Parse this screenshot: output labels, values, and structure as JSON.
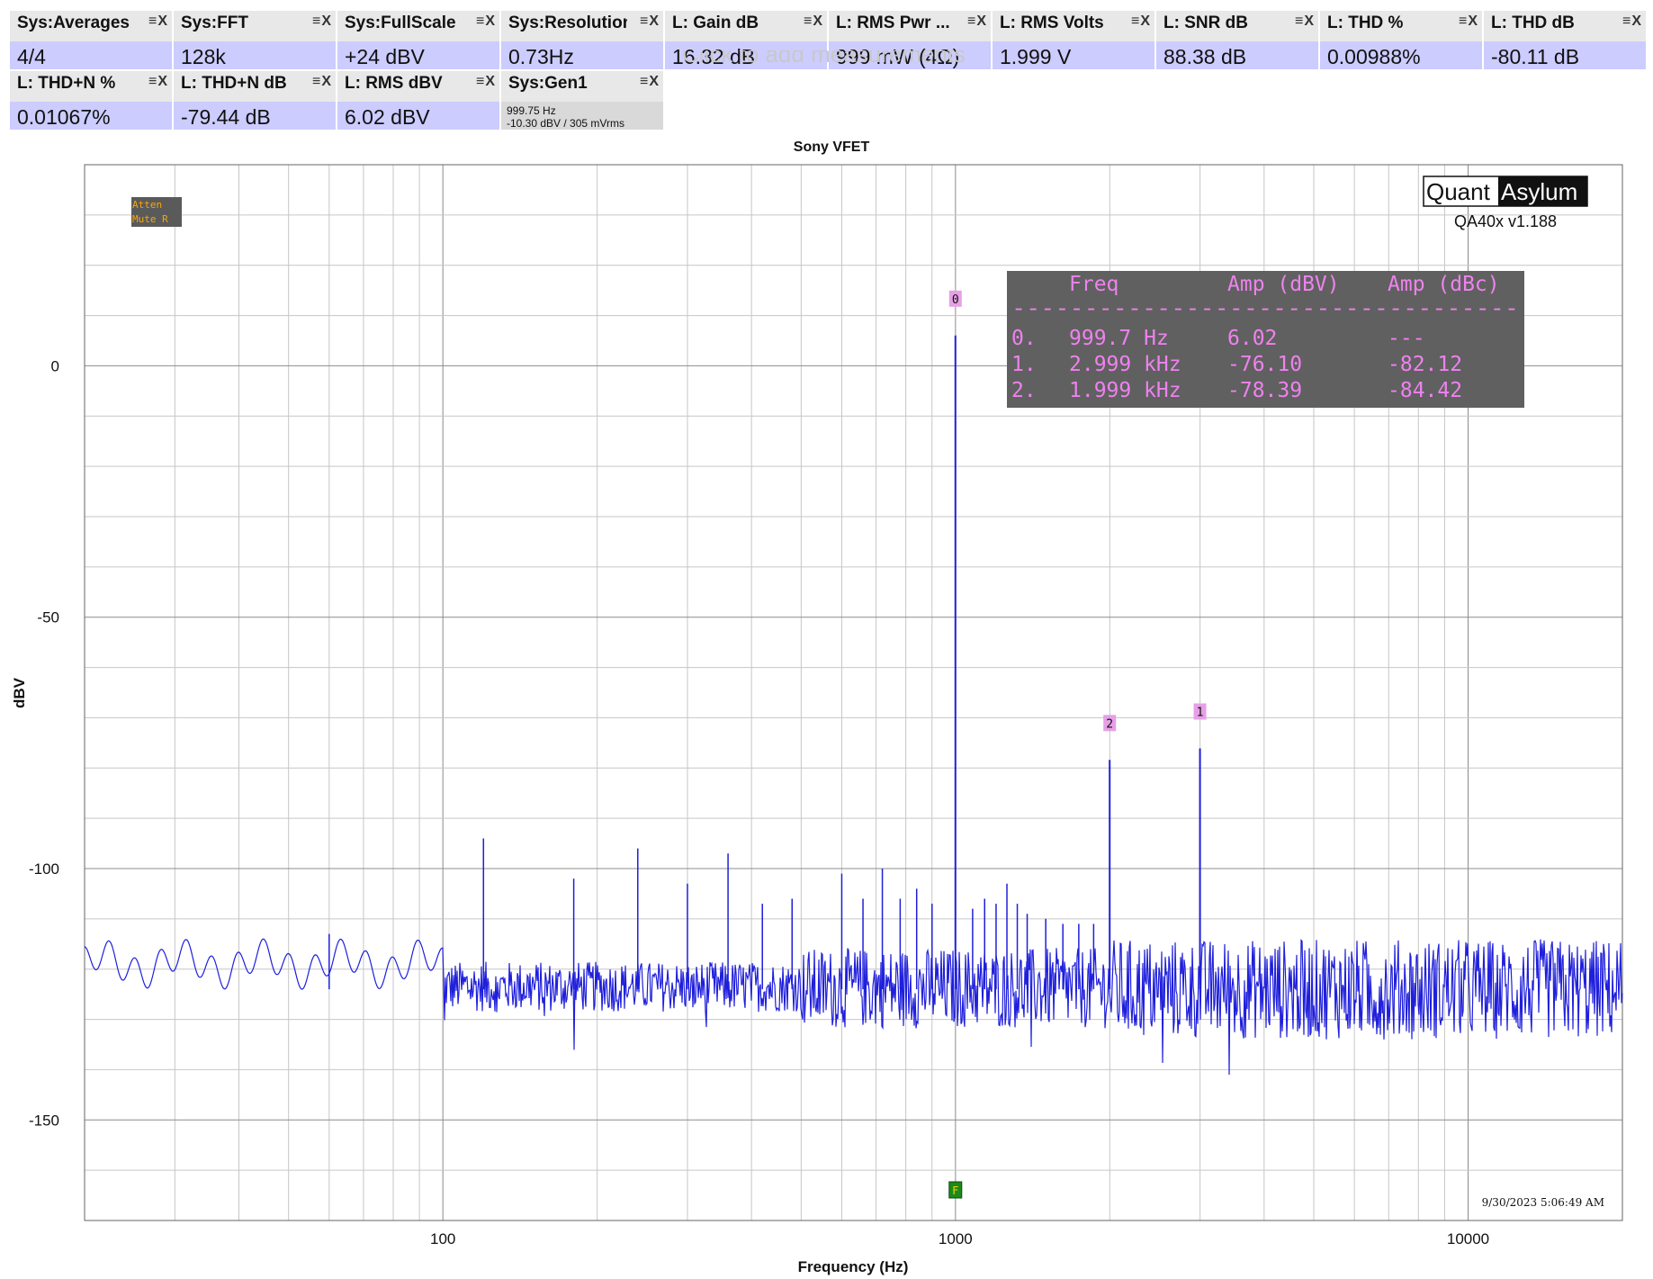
{
  "tiles": [
    {
      "name": "Sys:Averages",
      "value": "4/4"
    },
    {
      "name": "Sys:FFT",
      "value": "128k"
    },
    {
      "name": "Sys:FullScale",
      "value": "+24 dBV"
    },
    {
      "name": "Sys:Resolution",
      "value": "0.73Hz"
    },
    {
      "name": "L: Gain dB",
      "value": "16.32 dB"
    },
    {
      "name": "L: RMS Pwr ...",
      "value": "999 mW (4Ω)"
    },
    {
      "name": "L: RMS Volts",
      "value": "1.999 V"
    },
    {
      "name": "L: SNR dB",
      "value": "88.38 dB"
    },
    {
      "name": "L: THD %",
      "value": "0.00988%"
    },
    {
      "name": "L: THD dB",
      "value": "-80.11 dB"
    },
    {
      "name": "L: THD+N %",
      "value": "0.01067%"
    },
    {
      "name": "L: THD+N dB",
      "value": "-79.44 dB"
    },
    {
      "name": "L: RMS dBV",
      "value": "6.02 dBV"
    },
    {
      "name": "Sys:Gen1",
      "line1": "999.75 Hz",
      "line2": "-10.30 dBV  / 305 mVrms"
    }
  ],
  "tile_controls": "≡X",
  "click_hint": "Click to add measurements",
  "status_box": {
    "line1": "Atten",
    "line2": "Mute R"
  },
  "logo": {
    "left": "Quant",
    "right": "Asylum",
    "version": "QA40x v1.188"
  },
  "timestamp": "9/30/2023 5:06:49 AM",
  "peak_table": {
    "headers": [
      "Freq",
      "Amp (dBV)",
      "Amp (dBc)"
    ],
    "separator": "-----------------------------------",
    "rows": [
      {
        "idx": "0.",
        "freq": "999.7 Hz",
        "amp_dbv": "6.02",
        "amp_dbc": "---"
      },
      {
        "idx": "1.",
        "freq": "2.999 kHz",
        "amp_dbv": "-76.10",
        "amp_dbc": "-82.12"
      },
      {
        "idx": "2.",
        "freq": "1.999 kHz",
        "amp_dbv": "-78.39",
        "amp_dbc": "-84.42"
      }
    ]
  },
  "colors": {
    "trace": "#1f1fdc",
    "marker": "#e6a0e6",
    "table_bg": "#606060",
    "table_text": "#ee82ee",
    "fund_marker": "#1a8a1a"
  },
  "chart_data": {
    "type": "line",
    "title": "Sony VFET",
    "xlabel": "Frequency (Hz)",
    "ylabel": "dBV",
    "x_scale": "log",
    "xlim": [
      20,
      20000
    ],
    "ylim": [
      -170,
      40
    ],
    "x_ticks": [
      100,
      1000,
      10000
    ],
    "x_tick_labels": [
      "100",
      "1000",
      "10000"
    ],
    "y_ticks": [
      0,
      -50,
      -100,
      -150
    ],
    "y_tick_labels": [
      "0",
      "-50",
      "-100",
      "-150"
    ],
    "grid": true,
    "noise_floor_dbv": -122,
    "markers": [
      {
        "label": "0",
        "freq": 999.7,
        "amp": 6.02
      },
      {
        "label": "1",
        "freq": 2999,
        "amp": -76.1
      },
      {
        "label": "2",
        "freq": 1999,
        "amp": -78.39
      }
    ],
    "spurs": [
      {
        "freq": 60,
        "amp": -113
      },
      {
        "freq": 120,
        "amp": -94
      },
      {
        "freq": 180,
        "amp": -102
      },
      {
        "freq": 240,
        "amp": -96
      },
      {
        "freq": 300,
        "amp": -103
      },
      {
        "freq": 360,
        "amp": -97
      },
      {
        "freq": 420,
        "amp": -107
      },
      {
        "freq": 480,
        "amp": -106
      },
      {
        "freq": 600,
        "amp": -101
      },
      {
        "freq": 660,
        "amp": -106
      },
      {
        "freq": 720,
        "amp": -100
      },
      {
        "freq": 780,
        "amp": -106
      },
      {
        "freq": 840,
        "amp": -104
      },
      {
        "freq": 900,
        "amp": -107
      },
      {
        "freq": 1080,
        "amp": -108
      },
      {
        "freq": 1140,
        "amp": -106
      },
      {
        "freq": 1200,
        "amp": -107
      },
      {
        "freq": 1260,
        "amp": -103
      },
      {
        "freq": 1320,
        "amp": -107
      },
      {
        "freq": 1380,
        "amp": -109
      },
      {
        "freq": 1500,
        "amp": -110
      },
      {
        "freq": 1620,
        "amp": -111
      },
      {
        "freq": 1740,
        "amp": -111
      },
      {
        "freq": 1860,
        "amp": -111
      }
    ],
    "fund_marker_label": "F"
  }
}
